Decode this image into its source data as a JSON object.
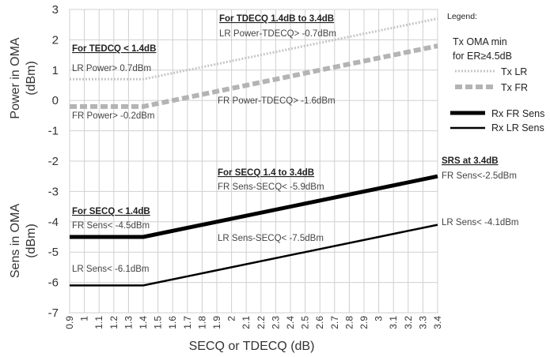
{
  "chart_data": {
    "type": "line",
    "x": [
      0.9,
      1.0,
      1.1,
      1.2,
      1.3,
      1.4,
      1.5,
      1.6,
      1.7,
      1.8,
      1.9,
      2.0,
      2.1,
      2.2,
      2.3,
      2.4,
      2.5,
      2.6,
      2.7,
      2.8,
      2.9,
      3.0,
      3.1,
      3.2,
      3.3,
      3.4
    ],
    "x_tick_labels": [
      "0.9",
      "1",
      "1.1",
      "1.2",
      "1.3",
      "1.4",
      "1.5",
      "1.6",
      "1.7",
      "1.8",
      "1.9",
      "2",
      "2.1",
      "2.2",
      "2.3",
      "2.4",
      "2.5",
      "2.6",
      "2.7",
      "2.8",
      "2.9",
      "3",
      "3.1",
      "3.2",
      "3.3",
      "3.4"
    ],
    "xlim": [
      0.9,
      3.4
    ],
    "ylim": [
      -7,
      3
    ],
    "y_ticks": [
      3,
      2,
      1,
      0,
      -1,
      -2,
      -3,
      -4,
      -5,
      -6,
      -7
    ],
    "y_tick_labels": [
      "3",
      "2",
      "1",
      "0",
      "-1",
      "-2",
      "-3",
      "-4",
      "-5",
      "-6",
      "-7"
    ],
    "xlabel": "SECQ or TDECQ (dB)",
    "ylabel_top": [
      "Power in OMA",
      "(dBm)"
    ],
    "ylabel_bottom": [
      "Sens in OMA",
      "(dBm)"
    ],
    "grid": true,
    "legend_position": "right",
    "legend": {
      "title": "Legend:",
      "tx_heading": [
        "Tx OMA min",
        "for ER≥4.5dB"
      ],
      "tx_lr": "Tx LR",
      "tx_fr": "Tx FR",
      "rx_fr": "Rx FR Sens",
      "rx_lr": "Rx LR Sens"
    },
    "series": [
      {
        "name": "Tx LR",
        "points": [
          [
            0.9,
            0.7
          ],
          [
            1.4,
            0.7
          ],
          [
            3.4,
            2.7
          ]
        ],
        "color": "#c6c6c6",
        "dash": "dotted"
      },
      {
        "name": "Tx FR",
        "points": [
          [
            0.9,
            -0.2
          ],
          [
            1.4,
            -0.2
          ],
          [
            3.4,
            1.8
          ]
        ],
        "color": "#b4b4b4",
        "dash": "dashed"
      },
      {
        "name": "Rx FR Sens",
        "points": [
          [
            0.9,
            -4.5
          ],
          [
            1.4,
            -4.5
          ],
          [
            3.4,
            -2.5
          ]
        ],
        "color": "#000000",
        "dash": "solid"
      },
      {
        "name": "Rx LR Sens",
        "points": [
          [
            0.9,
            -6.1
          ],
          [
            1.4,
            -6.1
          ],
          [
            3.4,
            -4.1
          ]
        ],
        "color": "#000000",
        "dash": "solid"
      }
    ],
    "annotations": {
      "tdecq_high_head": "For TDECQ 1.4dB to 3.4dB",
      "lr_power_tdecq": "LR Power-TDECQ> -0.7dBm",
      "tdecq_low_head": "For TEDCQ < 1.4dB",
      "lr_power": "LR Power> 0.7dBm",
      "fr_power_tdecq": "FR Power-TDECQ> -1.6dBm",
      "fr_power": "FR Power> -0.2dBm",
      "srs_head": "SRS at 3.4dB",
      "fr_sens_srs": "FR Sens<-2.5dBm",
      "secq_high_head": "For SECQ 1.4 to 3.4dB",
      "fr_sens_secq": "FR Sens-SECQ< -5.9dBm",
      "secq_low_head": "For SECQ < 1.4dB",
      "fr_sens": "FR Sens< -4.5dBm",
      "lr_sens_srs": "LR Sens< -4.1dBm",
      "lr_sens_secq": "LR Sens-SECQ< -7.5dBm",
      "lr_sens": "LR Sens< -6.1dBm"
    }
  }
}
